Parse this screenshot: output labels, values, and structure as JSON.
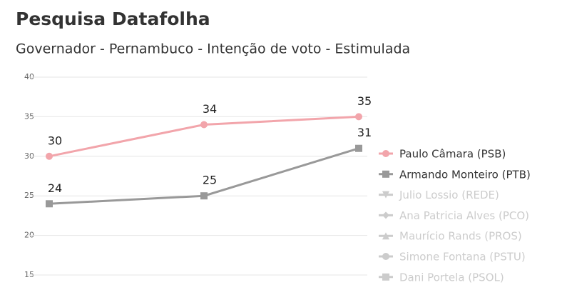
{
  "chart_data": {
    "type": "line",
    "title": "Pesquisa Datafolha",
    "subtitle": "Governador - Pernambuco - Intenção de voto - Estimulada",
    "categories": [
      null,
      null,
      null
    ],
    "ylim": [
      15,
      40
    ],
    "yticks": [
      15,
      20,
      25,
      30,
      35,
      40
    ],
    "grid": true,
    "legend": "right",
    "series": [
      {
        "name": "Paulo Câmara (PSB)",
        "color": "#f2a5ab",
        "marker": "circle",
        "values": [
          30,
          34,
          35
        ]
      },
      {
        "name": "Armando Monteiro (PTB)",
        "color": "#999999",
        "marker": "square",
        "values": [
          24,
          25,
          31
        ]
      },
      {
        "name": "Julio Lossio (REDE)",
        "color": "#cccccc",
        "marker": "triangle-down",
        "hidden": true,
        "values": [
          null,
          null,
          null
        ]
      },
      {
        "name": "Ana Patricia Alves (PCO)",
        "color": "#cccccc",
        "marker": "diamond",
        "hidden": true,
        "values": [
          null,
          null,
          null
        ]
      },
      {
        "name": "Maurício Rands (PROS)",
        "color": "#cccccc",
        "marker": "triangle",
        "hidden": true,
        "values": [
          null,
          null,
          null
        ]
      },
      {
        "name": "Simone Fontana (PSTU)",
        "color": "#cccccc",
        "marker": "circle",
        "hidden": true,
        "values": [
          null,
          null,
          null
        ]
      },
      {
        "name": "Dani Portela (PSOL)",
        "color": "#cccccc",
        "marker": "square",
        "hidden": true,
        "values": [
          null,
          null,
          null
        ]
      }
    ]
  }
}
